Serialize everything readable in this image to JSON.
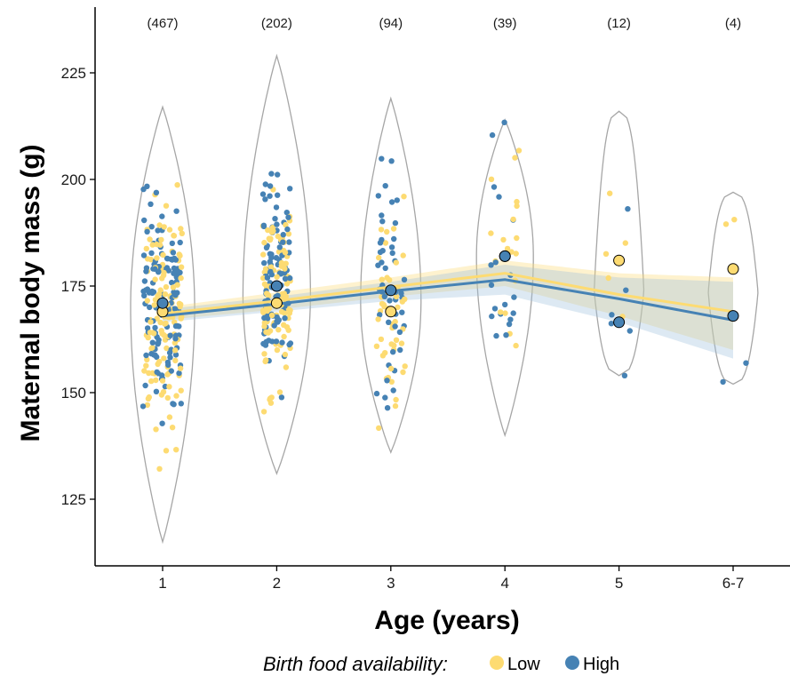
{
  "chart_data": {
    "type": "scatter",
    "subtype": "violin-jitter-with-trend",
    "categories": [
      "1",
      "2",
      "3",
      "4",
      "5",
      "6-7"
    ],
    "sample_sizes": [
      "(467)",
      "(202)",
      "(94)",
      "(39)",
      "(12)",
      "(4)"
    ],
    "xlabel": "Age (years)",
    "ylabel": "Maternal body mass (g)",
    "ylim": [
      108,
      238
    ],
    "yticks": [
      125,
      150,
      175,
      200,
      225
    ],
    "grid": false,
    "violins": [
      {
        "category": "1",
        "min": 115,
        "max": 217
      },
      {
        "category": "2",
        "min": 131,
        "max": 229
      },
      {
        "category": "3",
        "min": 136,
        "max": 219
      },
      {
        "category": "4",
        "min": 140,
        "max": 214
      },
      {
        "category": "5",
        "min": 154,
        "max": 216
      },
      {
        "category": "6-7",
        "min": 152,
        "max": 197
      }
    ],
    "series": [
      {
        "name": "Low",
        "color": "#fddb72",
        "means": [
          169,
          171,
          169,
          182,
          181,
          179
        ],
        "trend": [
          168.5,
          171.5,
          174.8,
          178,
          173,
          169
        ],
        "ci_upper": [
          170,
          173.5,
          177,
          181,
          178,
          177
        ],
        "ci_lower": [
          167,
          169.5,
          172.5,
          175,
          168,
          160
        ]
      },
      {
        "name": "High",
        "color": "#4682b4",
        "means": [
          171,
          175,
          174,
          182,
          166.5,
          168
        ],
        "trend": [
          168,
          170.8,
          173.8,
          176.5,
          172,
          167
        ],
        "ci_upper": [
          169.5,
          172.5,
          176,
          180,
          177,
          176
        ],
        "ci_lower": [
          166.5,
          169,
          171.5,
          173,
          166.5,
          158
        ]
      }
    ],
    "legend": {
      "title": "Birth food availability:",
      "position": "bottom",
      "items": [
        "Low",
        "High"
      ]
    }
  },
  "colors": {
    "low": "#fddb72",
    "high": "#4682b4",
    "violin": "#a6a6a6",
    "ci_band": "#d8e4d8"
  }
}
